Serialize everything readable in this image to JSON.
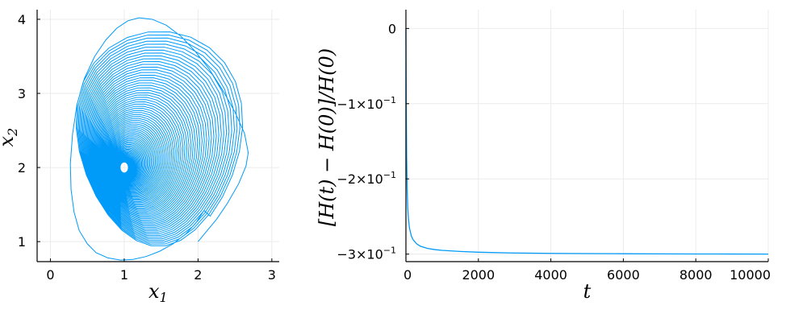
{
  "colors": {
    "series": "#009af9"
  },
  "chart_data": [
    {
      "type": "line",
      "title": "",
      "xlabel": "x",
      "xlabel_sub": "1",
      "ylabel": "x",
      "ylabel_sub": "2",
      "xlim": [
        -0.18,
        3.1
      ],
      "ylim": [
        0.73,
        4.13
      ],
      "xticks": [
        0,
        1,
        2,
        3
      ],
      "xtick_labels": [
        "0",
        "1",
        "2",
        "3"
      ],
      "yticks": [
        1,
        2,
        3,
        4
      ],
      "ytick_labels": [
        "1",
        "2",
        "3",
        "4"
      ],
      "grid": true,
      "series": [
        {
          "description_kind": "spiral trajectory",
          "start": [
            2.0,
            1.0
          ],
          "end": [
            1.0,
            2.0
          ],
          "outer_turn_extents": {
            "x_max": 2.68,
            "x_min": 0.27,
            "y_max": 4.02,
            "y_min": 0.75
          },
          "x": [
            2.0,
            2.1,
            2.25,
            2.4,
            2.55,
            2.65,
            2.68,
            2.63,
            2.5,
            2.33,
            2.15,
            1.96,
            1.77,
            1.57,
            1.38,
            1.2,
            1.05,
            0.9,
            0.75,
            0.6,
            0.46,
            0.36,
            0.3,
            0.27,
            0.28,
            0.32,
            0.39,
            0.5,
            0.62,
            0.78,
            0.95,
            1.12,
            1.3,
            1.48,
            1.66,
            1.83,
            1.97,
            2.08
          ],
          "y": [
            1.0,
            1.12,
            1.3,
            1.52,
            1.78,
            2.02,
            2.2,
            2.46,
            2.75,
            3.05,
            3.33,
            3.57,
            3.77,
            3.92,
            4.0,
            4.02,
            3.98,
            3.88,
            3.72,
            3.5,
            3.2,
            2.85,
            2.45,
            2.05,
            1.7,
            1.4,
            1.15,
            0.97,
            0.85,
            0.78,
            0.75,
            0.76,
            0.8,
            0.87,
            0.97,
            1.1,
            1.25,
            1.42
          ]
        }
      ]
    },
    {
      "type": "line",
      "title": "",
      "xlabel": "t",
      "ylabel": "[H(t) − H(0)]/H(0)",
      "xlim": [
        0,
        10000
      ],
      "ylim": [
        -0.31,
        0.025
      ],
      "xticks": [
        0,
        2000,
        4000,
        6000,
        8000,
        10000
      ],
      "xtick_labels": [
        "0",
        "2000",
        "4000",
        "6000",
        "8000",
        "10000"
      ],
      "yticks": [
        0,
        -0.1,
        -0.2,
        -0.3
      ],
      "ytick_labels": [
        "0",
        "−1×10",
        "−2×10",
        "−3×10"
      ],
      "ytick_exp": [
        "",
        "−1",
        "−1",
        "−1"
      ],
      "grid": true,
      "series": [
        {
          "x": [
            0,
            10,
            20,
            35,
            50,
            70,
            100,
            150,
            200,
            300,
            400,
            600,
            800,
            1000,
            1500,
            2000,
            3000,
            4000,
            5000,
            6000,
            7000,
            8000,
            9000,
            10000
          ],
          "y": [
            0.0,
            -0.1,
            -0.17,
            -0.215,
            -0.238,
            -0.253,
            -0.266,
            -0.276,
            -0.281,
            -0.2865,
            -0.2895,
            -0.2925,
            -0.294,
            -0.295,
            -0.2965,
            -0.2975,
            -0.2985,
            -0.299,
            -0.2993,
            -0.2995,
            -0.2997,
            -0.2998,
            -0.2999,
            -0.3
          ]
        }
      ]
    }
  ]
}
